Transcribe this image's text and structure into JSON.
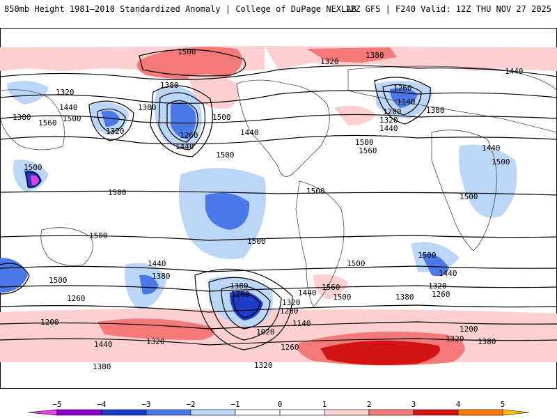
{
  "header": {
    "left": "850mb Height 1981–2010 Standardized Anomaly | College of DuPage NEXLAB",
    "right": "12Z GFS | F240 Valid: 12Z THU NOV 27 2025"
  },
  "colors": {
    "neg5": "#e040e0",
    "neg4": "#8a00c8",
    "neg3": "#1e3cc8",
    "neg2": "#4a78e6",
    "neg1": "#bcd6f8",
    "neutral": "#ffffff",
    "pos1": "#fcd0d0",
    "pos2": "#f47a7a",
    "pos3": "#d21414",
    "pos4": "#ff7a00",
    "pos5": "#ffc000"
  },
  "colorbar": {
    "ticks": [
      "−5",
      "−4",
      "−3",
      "−2",
      "−1",
      "0",
      "1",
      "2",
      "3",
      "4",
      "5"
    ]
  },
  "contour_labels": [
    "1500",
    "1320",
    "1380",
    "1440",
    "1320",
    "1380",
    "1500",
    "1440",
    "1560",
    "1500",
    "1320",
    "1380",
    "1380",
    "1260",
    "1440",
    "1500",
    "1500",
    "1440",
    "1260",
    "1140",
    "1200",
    "1320",
    "1440",
    "1380",
    "1500",
    "1560",
    "1440",
    "1500",
    "1500",
    "1500",
    "1500",
    "1500",
    "1500",
    "1500",
    "1440",
    "1380",
    "1260",
    "1200",
    "1500",
    "1380",
    "1260",
    "1320",
    "1200",
    "1140",
    "1020",
    "1440",
    "1320",
    "1560",
    "1500",
    "1380",
    "1500",
    "1440",
    "1320",
    "1260",
    "1200",
    "1320",
    "1380",
    "1440",
    "1260",
    "1380",
    "1320"
  ]
}
